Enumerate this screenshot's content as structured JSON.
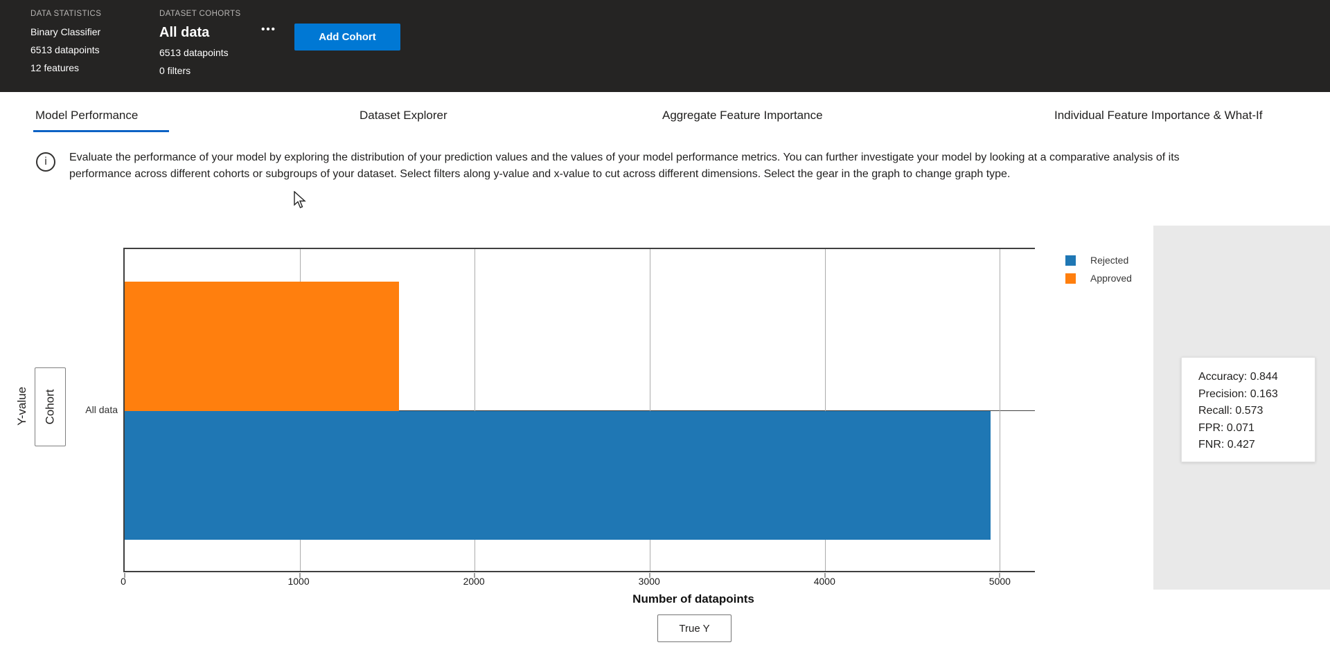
{
  "header": {
    "data_statistics": {
      "section_label": "DATA STATISTICS",
      "model_type": "Binary Classifier",
      "datapoints": "6513 datapoints",
      "features": "12 features"
    },
    "dataset_cohorts": {
      "section_label": "DATASET COHORTS",
      "cohort_name": "All data",
      "datapoints": "6513 datapoints",
      "filters": "0 filters",
      "more_options_label": "•••"
    },
    "add_cohort_button": "Add Cohort"
  },
  "tabs": [
    {
      "label": "Model Performance",
      "active": true
    },
    {
      "label": "Dataset Explorer",
      "active": false
    },
    {
      "label": "Aggregate Feature Importance",
      "active": false
    },
    {
      "label": "Individual Feature Importance & What-If",
      "active": false
    }
  ],
  "info_banner": {
    "icon_glyph": "i",
    "text": "Evaluate the performance of your model by exploring the distribution of your prediction values and the values of your model performance metrics. You can further investigate your model by looking at a comparative analysis of its performance across different cohorts or subgroups of your dataset. Select filters along y-value and x-value to cut across different dimensions. Select the gear in the graph to change graph type."
  },
  "chart_controls": {
    "y_axis_label": "Y-value",
    "y_axis_button": "Cohort",
    "x_axis_button": "True Y"
  },
  "chart_data": {
    "type": "bar",
    "orientation": "horizontal",
    "categories": [
      "All data"
    ],
    "series": [
      {
        "name": "Rejected",
        "color": "#1f77b4",
        "values": [
          4947
        ]
      },
      {
        "name": "Approved",
        "color": "#ff7f0e",
        "values": [
          1566
        ]
      }
    ],
    "xlabel": "Number of datapoints",
    "ylabel": "",
    "x_ticks": [
      0,
      1000,
      2000,
      3000,
      4000,
      5000
    ],
    "xlim": [
      0,
      5200
    ],
    "grid": true,
    "legend_position": "top-right"
  },
  "metrics_panel": {
    "metrics": [
      "Accuracy: 0.844",
      "Precision: 0.163",
      "Recall: 0.573",
      "FPR: 0.071",
      "FNR: 0.427"
    ]
  },
  "colors": {
    "header_bg": "#252423",
    "accent_blue": "#0078d4",
    "tab_underline": "#0c62c4",
    "bar_blue": "#1f77b4",
    "bar_orange": "#ff7f0e",
    "panel_gray": "#e9e9e9"
  }
}
